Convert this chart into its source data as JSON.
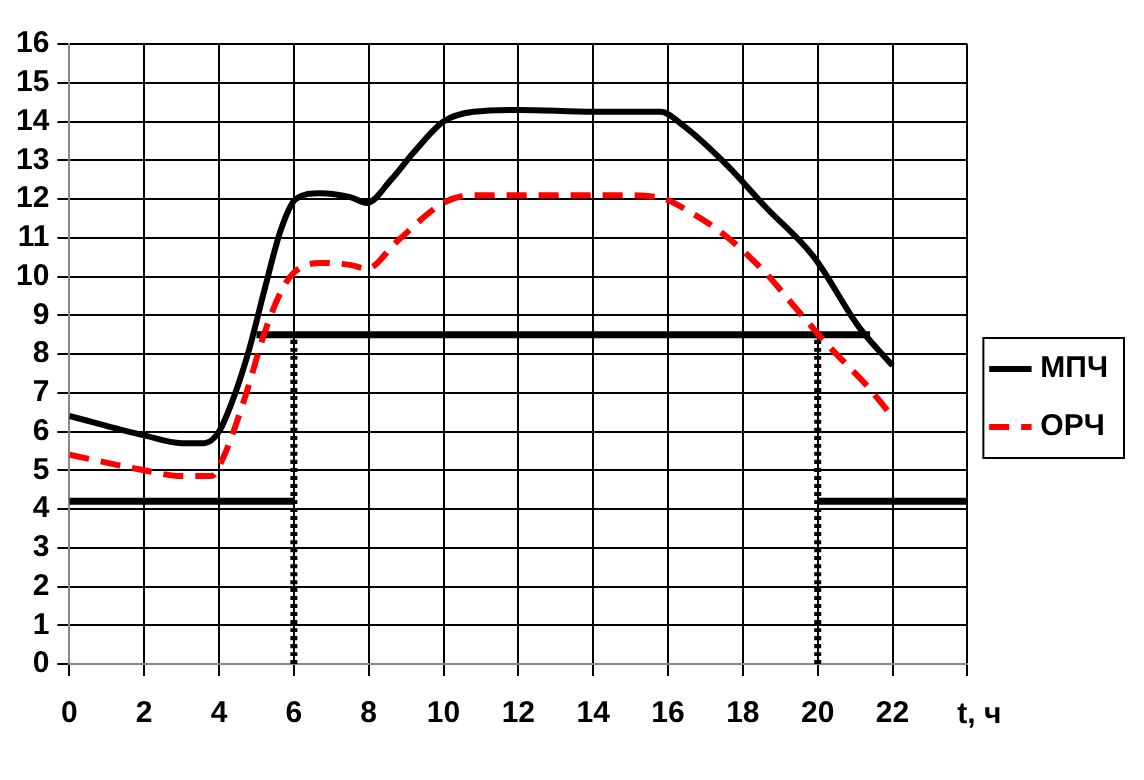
{
  "chart_data": {
    "type": "line",
    "xlabel": "t, ч",
    "xlim": [
      0,
      24
    ],
    "xticks": [
      0,
      2,
      4,
      6,
      8,
      10,
      12,
      14,
      16,
      18,
      20,
      22,
      {
        "value": 24,
        "label": null
      }
    ],
    "ylim": [
      0,
      16
    ],
    "yticks": [
      0,
      1,
      2,
      3,
      4,
      5,
      6,
      7,
      8,
      9,
      10,
      11,
      12,
      13,
      14,
      15,
      16
    ],
    "grid": true,
    "legend": "right",
    "marker": "none",
    "series": [
      {
        "name": "МПЧ",
        "color": "#000000",
        "line_style": "solid",
        "x": [
          0,
          2,
          3,
          3.6,
          4,
          4.4,
          4.8,
          5.2,
          5.65,
          6.05,
          6.7,
          7.5,
          7.95,
          8.6,
          9.2,
          10,
          10.8,
          12,
          14,
          15.8,
          16.4,
          17.6,
          18.6,
          19.9,
          21.1,
          22
        ],
        "values": [
          6.4,
          5.9,
          5.7,
          5.7,
          6,
          6.9,
          8.1,
          9.6,
          11.2,
          12,
          12.15,
          12.05,
          11.9,
          12.5,
          13.2,
          14,
          14.25,
          14.3,
          14.25,
          14.25,
          13.9,
          12.85,
          11.8,
          10.5,
          8.7,
          7.7
        ]
      },
      {
        "name": "ОРЧ",
        "color": "#ff0000",
        "line_style": "dashed",
        "x": [
          0,
          2,
          3,
          3.8,
          4.1,
          4.7,
          5.2,
          5.65,
          6,
          6.7,
          7.5,
          7.95,
          8.75,
          10,
          10.8,
          12,
          14.6,
          15.7,
          16.7,
          17.6,
          18.6,
          19.4,
          20.3,
          21.3,
          21.9
        ],
        "values": [
          5.4,
          5,
          4.85,
          4.85,
          5.3,
          6.9,
          8.5,
          9.6,
          10.1,
          10.35,
          10.3,
          10.2,
          10.9,
          11.9,
          12.1,
          12.1,
          12.1,
          12.05,
          11.6,
          11,
          10.1,
          9.2,
          8.2,
          7.2,
          6.5
        ]
      },
      {
        "color": "#000000",
        "line_style": "solid",
        "x": [
          0,
          6
        ],
        "values": [
          4.2,
          4.2
        ]
      },
      {
        "color": "#000000",
        "line_style": "solid",
        "x": [
          5,
          21.4
        ],
        "values": [
          8.5,
          8.5
        ]
      },
      {
        "color": "#000000",
        "line_style": "solid",
        "x": [
          20,
          24
        ],
        "values": [
          4.2,
          4.2
        ]
      },
      {
        "color": "#000000",
        "line_style": "dotted",
        "x": [
          6,
          6
        ],
        "values": [
          0,
          8.5
        ]
      },
      {
        "color": "#000000",
        "line_style": "dotted",
        "x": [
          20,
          20
        ],
        "values": [
          0,
          8.5
        ]
      }
    ]
  }
}
